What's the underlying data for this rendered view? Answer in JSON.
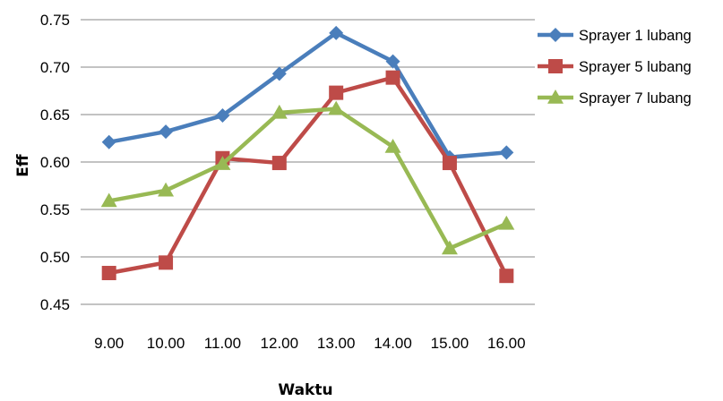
{
  "chart_data": {
    "type": "line",
    "title": "",
    "xlabel": "Waktu",
    "ylabel": "Eff",
    "categories": [
      "9.00",
      "10.00",
      "11.00",
      "12.00",
      "13.00",
      "14.00",
      "15.00",
      "16.00"
    ],
    "y_ticks": [
      "0.45",
      "0.50",
      "0.55",
      "0.60",
      "0.65",
      "0.70",
      "0.75"
    ],
    "ylim": [
      0.45,
      0.75
    ],
    "grid": "horizontal",
    "legend_position": "right",
    "series": [
      {
        "name": "Sprayer 1 lubang",
        "color": "#4a7ebb",
        "marker": "diamond",
        "values": [
          0.621,
          0.632,
          0.649,
          0.693,
          0.736,
          0.706,
          0.605,
          0.61
        ]
      },
      {
        "name": "Sprayer 5 lubang",
        "color": "#be4b48",
        "marker": "square",
        "values": [
          0.483,
          0.494,
          0.604,
          0.599,
          0.673,
          0.689,
          0.599,
          0.48
        ]
      },
      {
        "name": "Sprayer 7 lubang",
        "color": "#98b954",
        "marker": "triangle",
        "values": [
          0.559,
          0.57,
          0.598,
          0.652,
          0.656,
          0.616,
          0.509,
          0.535
        ]
      }
    ]
  }
}
